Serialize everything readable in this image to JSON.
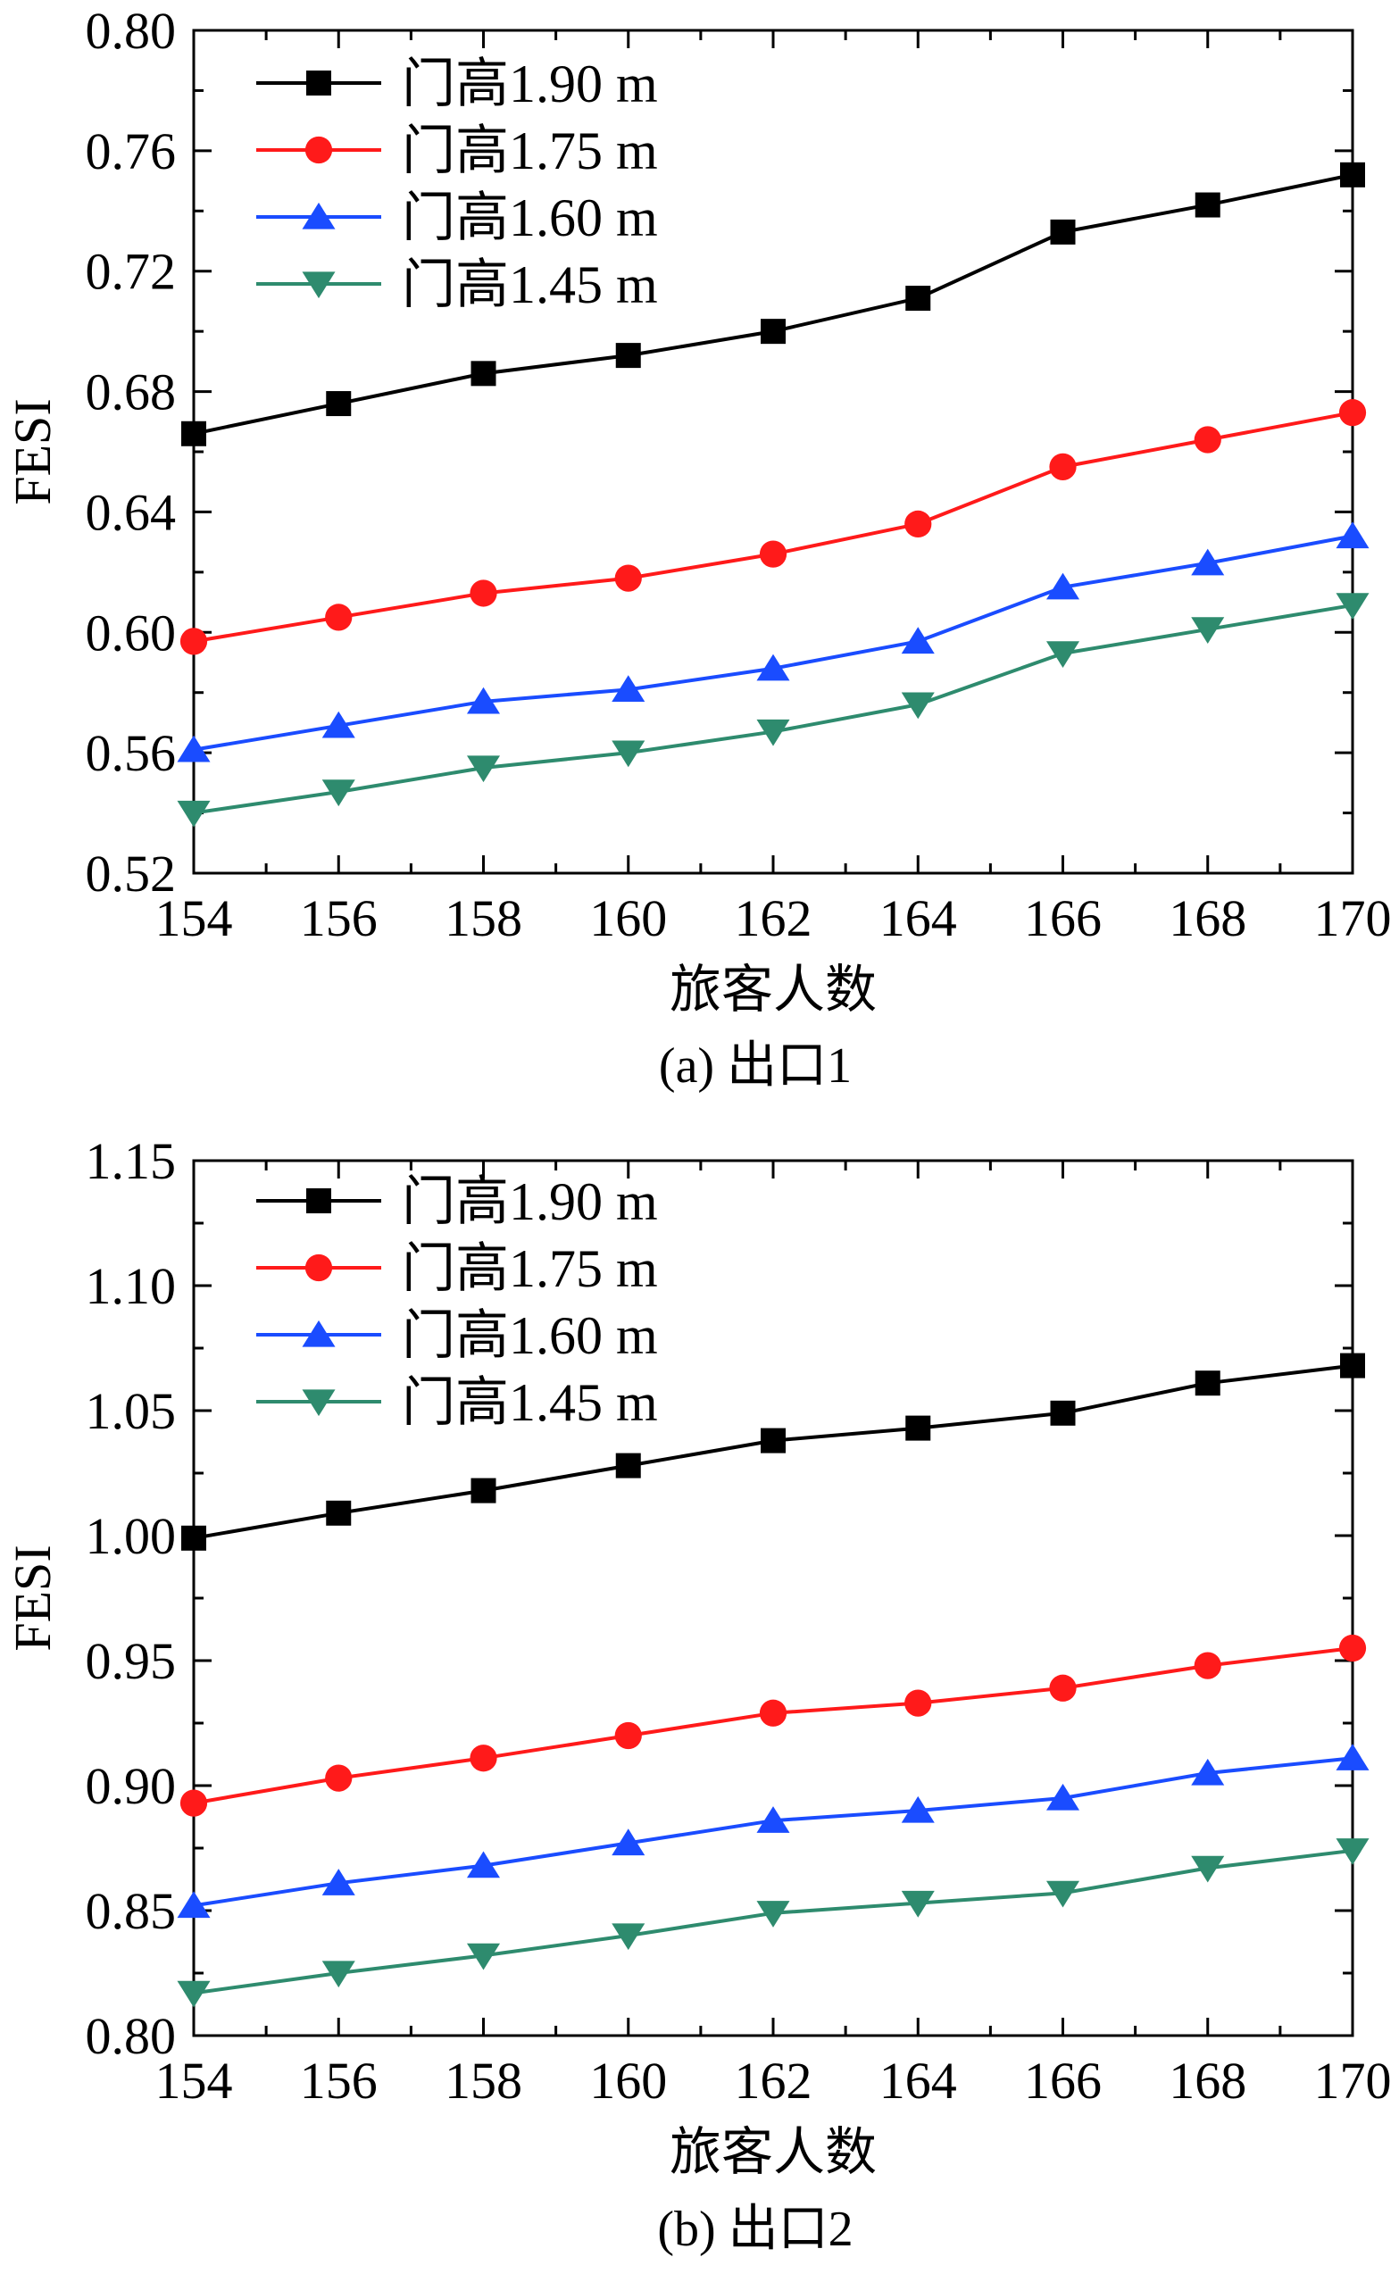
{
  "chart_data": [
    {
      "type": "line",
      "caption": "(a) 出口1",
      "xlabel": "旅客人数",
      "ylabel": "FESI",
      "x": [
        154,
        156,
        158,
        160,
        162,
        164,
        166,
        168,
        170
      ],
      "xlim": [
        154,
        170
      ],
      "xticks": [
        "154",
        "156",
        "158",
        "160",
        "162",
        "164",
        "166",
        "168",
        "170"
      ],
      "ylim": [
        0.52,
        0.8
      ],
      "yticks": [
        "0.52",
        "0.56",
        "0.60",
        "0.64",
        "0.68",
        "0.72",
        "0.76",
        "0.80"
      ],
      "grid": false,
      "legend_position": "top-left",
      "series": [
        {
          "name": "门高1.90 m",
          "color": "#000000",
          "marker": "square",
          "values": [
            0.666,
            0.676,
            0.686,
            0.692,
            0.7,
            0.711,
            0.733,
            0.742,
            0.752
          ]
        },
        {
          "name": "门高1.75 m",
          "color": "#ff1a1a",
          "marker": "circle",
          "values": [
            0.597,
            0.605,
            0.613,
            0.618,
            0.626,
            0.636,
            0.655,
            0.664,
            0.673
          ]
        },
        {
          "name": "门高1.60 m",
          "color": "#1a4cff",
          "marker": "triangle-up",
          "values": [
            0.561,
            0.569,
            0.577,
            0.581,
            0.588,
            0.597,
            0.615,
            0.623,
            0.632
          ]
        },
        {
          "name": "门高1.45 m",
          "color": "#2e8b6e",
          "marker": "triangle-down",
          "values": [
            0.54,
            0.547,
            0.555,
            0.56,
            0.567,
            0.576,
            0.593,
            0.601,
            0.609
          ]
        }
      ]
    },
    {
      "type": "line",
      "caption": "(b) 出口2",
      "xlabel": "旅客人数",
      "ylabel": "FESI",
      "x": [
        154,
        156,
        158,
        160,
        162,
        164,
        166,
        168,
        170
      ],
      "xlim": [
        154,
        170
      ],
      "xticks": [
        "154",
        "156",
        "158",
        "160",
        "162",
        "164",
        "166",
        "168",
        "170"
      ],
      "ylim": [
        0.8,
        1.15
      ],
      "yticks": [
        "0.80",
        "0.85",
        "0.90",
        "0.95",
        "1.00",
        "1.05",
        "1.10",
        "1.15"
      ],
      "grid": false,
      "legend_position": "top-left",
      "series": [
        {
          "name": "门高1.90 m",
          "color": "#000000",
          "marker": "square",
          "values": [
            0.999,
            1.009,
            1.018,
            1.028,
            1.038,
            1.043,
            1.049,
            1.061,
            1.068
          ]
        },
        {
          "name": "门高1.75 m",
          "color": "#ff1a1a",
          "marker": "circle",
          "values": [
            0.893,
            0.903,
            0.911,
            0.92,
            0.929,
            0.933,
            0.939,
            0.948,
            0.955
          ]
        },
        {
          "name": "门高1.60 m",
          "color": "#1a4cff",
          "marker": "triangle-up",
          "values": [
            0.852,
            0.861,
            0.868,
            0.877,
            0.886,
            0.89,
            0.895,
            0.905,
            0.911
          ]
        },
        {
          "name": "门高1.45 m",
          "color": "#2e8b6e",
          "marker": "triangle-down",
          "values": [
            0.817,
            0.825,
            0.832,
            0.84,
            0.849,
            0.853,
            0.857,
            0.867,
            0.874
          ]
        }
      ]
    }
  ]
}
